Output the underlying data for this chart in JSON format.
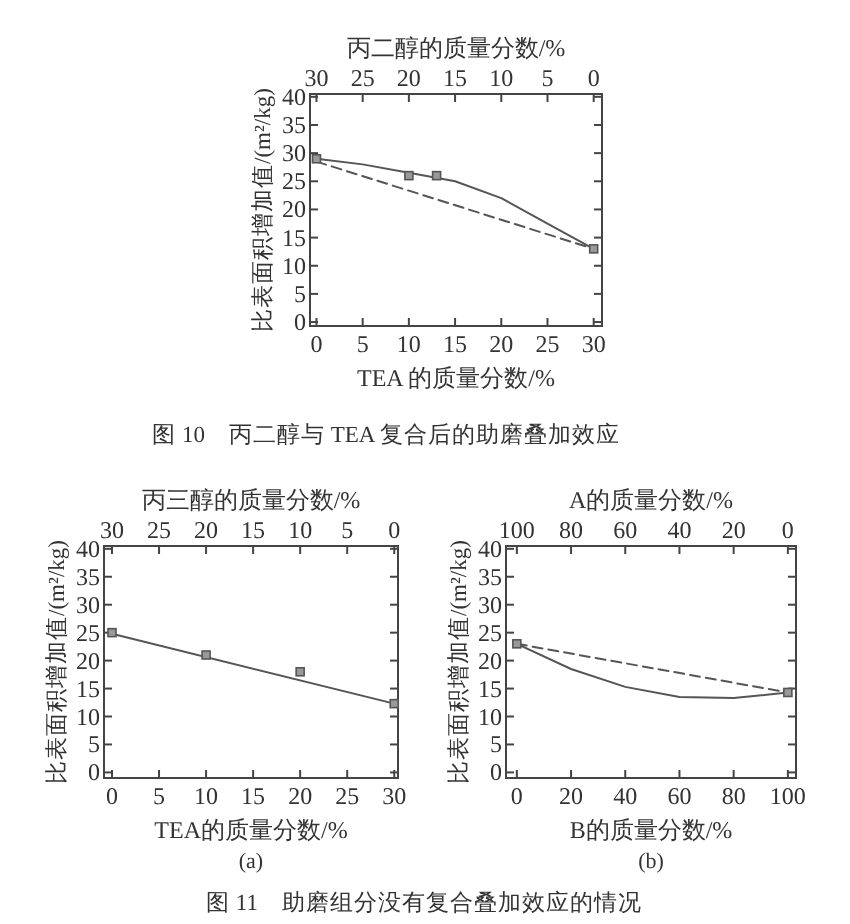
{
  "chart_data": [
    {
      "type": "line",
      "xlabel": "TEA 的质量分数/%",
      "x2label": "丙二醇的质量分数/%",
      "ylabel": "比表面积增加值/(m²/kg)",
      "xlim": [
        -0.7,
        30.9
      ],
      "xticks": [
        0,
        5,
        10,
        15,
        20,
        25,
        30
      ],
      "x2lim": [
        30.7,
        -0.9
      ],
      "x2ticks": [
        30,
        25,
        20,
        15,
        10,
        5,
        0
      ],
      "ylim": [
        -0.7,
        40.5
      ],
      "yticks": [
        0,
        5,
        10,
        15,
        20,
        25,
        30,
        35,
        40
      ],
      "grid": false,
      "series": [
        {
          "type": "scatter",
          "marker": "square",
          "color": "#555555",
          "x": [
            0,
            10,
            13,
            30
          ],
          "values": [
            29,
            26,
            26,
            13
          ]
        },
        {
          "type": "line",
          "marker": "none",
          "line_style": "solid",
          "color": "#555555",
          "x": [
            0,
            5,
            10,
            15,
            20,
            25,
            30
          ],
          "values": [
            29,
            28,
            26.5,
            25,
            22,
            17.5,
            13
          ]
        },
        {
          "type": "line",
          "marker": "none",
          "line_style": "dashed",
          "color": "#555555",
          "x": [
            0,
            30
          ],
          "values": [
            28.5,
            13
          ]
        }
      ],
      "annotations": [
        "图 10　丙二醇与 TEA 复合后的助磨叠加效应"
      ]
    },
    {
      "type": "line",
      "xlabel": "TEA的质量分数/%",
      "x2label": "丙三醇的质量分数/%",
      "ylabel": "比表面积增加值/(m²/kg)",
      "xlim": [
        -0.85,
        30.4
      ],
      "xticks": [
        0,
        5,
        10,
        15,
        20,
        25,
        30
      ],
      "x2lim": [
        30.85,
        -0.4
      ],
      "x2ticks": [
        30,
        25,
        20,
        15,
        10,
        5,
        0
      ],
      "ylim": [
        -1,
        40.5
      ],
      "yticks": [
        0,
        5,
        10,
        15,
        20,
        25,
        30,
        35,
        40
      ],
      "grid": false,
      "series": [
        {
          "type": "scatter",
          "marker": "square",
          "color": "#555555",
          "x": [
            0,
            10,
            20,
            30
          ],
          "values": [
            25,
            21,
            18,
            12.3
          ]
        },
        {
          "type": "line",
          "marker": "none",
          "line_style": "solid",
          "color": "#555555",
          "x": [
            0,
            30
          ],
          "values": [
            24.8,
            12.3
          ]
        }
      ],
      "annotations": [
        "(a)"
      ]
    },
    {
      "type": "line",
      "xlabel": "B的质量分数/%",
      "x2label": "A的质量分数/%",
      "ylabel": "比表面积增加值/(m²/kg)",
      "xlim": [
        -4,
        103
      ],
      "xticks": [
        0,
        20,
        40,
        60,
        80,
        100
      ],
      "x2lim": [
        104,
        -3
      ],
      "x2ticks": [
        100,
        80,
        60,
        40,
        20,
        0
      ],
      "ylim": [
        -1,
        40.5
      ],
      "yticks": [
        0,
        5,
        10,
        15,
        20,
        25,
        30,
        35,
        40
      ],
      "grid": false,
      "series": [
        {
          "type": "scatter",
          "marker": "square",
          "color": "#555555",
          "x": [
            0,
            100
          ],
          "values": [
            23,
            14.3
          ]
        },
        {
          "type": "line",
          "marker": "none",
          "line_style": "solid",
          "color": "#555555",
          "x": [
            0,
            20,
            40,
            60,
            80,
            100
          ],
          "values": [
            23,
            18.5,
            15.3,
            13.5,
            13.3,
            14.3
          ]
        },
        {
          "type": "line",
          "marker": "none",
          "line_style": "dashed",
          "color": "#555555",
          "x": [
            0,
            100
          ],
          "values": [
            23,
            14.3
          ]
        }
      ],
      "annotations": [
        "(b)",
        "图 11　助磨组分没有复合叠加效应的情况"
      ]
    }
  ]
}
